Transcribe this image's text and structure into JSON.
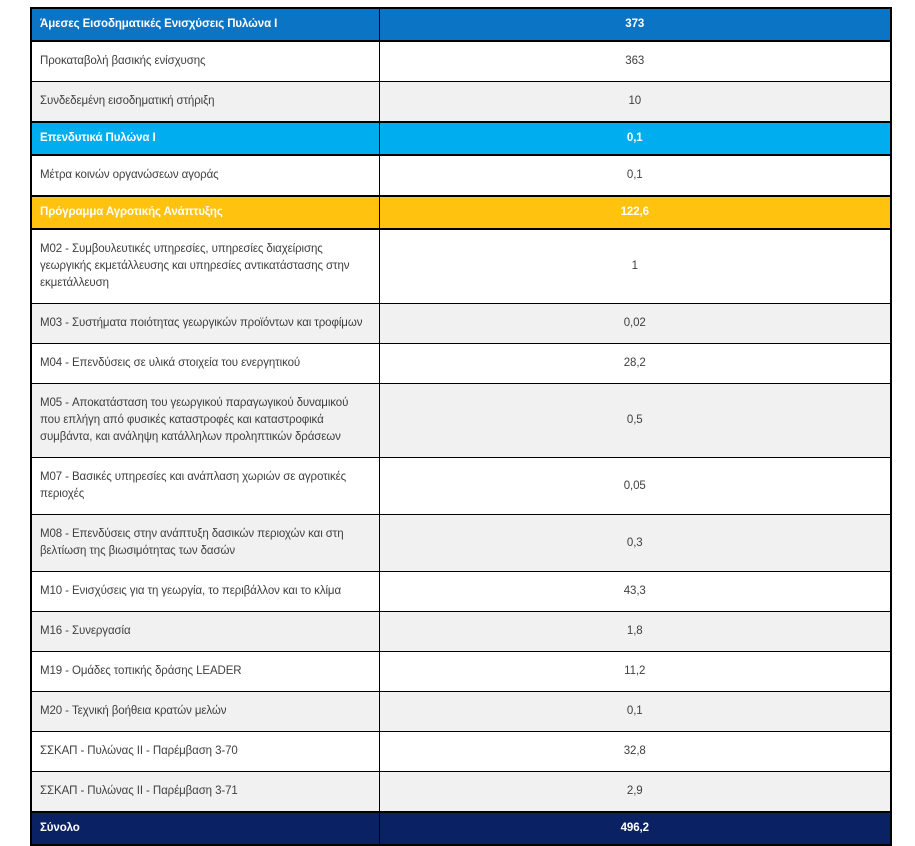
{
  "colors": {
    "header_blue": "#0b74c4",
    "header_cyan": "#00aeef",
    "header_orange": "#ffc20e",
    "total_navy": "#0a2263",
    "row_gray": "#f1f1f1",
    "row_white": "#ffffff",
    "border_black": "#000000",
    "text_dark": "#3f3f3f",
    "text_light": "#ffffff"
  },
  "chart_data": {
    "type": "table",
    "title": "",
    "columns": [
      "label",
      "value"
    ],
    "value_decimal_separator": ",",
    "rows": [
      {
        "row_style": "header-blue",
        "label": "Άμεσες Εισοδηματικές Ενισχύσεις Πυλώνα I",
        "value": "373"
      },
      {
        "row_style": "white",
        "label": "Προκαταβολή βασικής ενίσχυσης",
        "value": "363"
      },
      {
        "row_style": "gray",
        "label": "Συνδεδεμένη εισοδηματική στήριξη",
        "value": "10"
      },
      {
        "row_style": "header-cyan",
        "label": "Επενδυτικά Πυλώνα I",
        "value": "0,1"
      },
      {
        "row_style": "white",
        "label": "Μέτρα κοινών οργανώσεων αγοράς",
        "value": "0,1"
      },
      {
        "row_style": "header-orange",
        "label": "Πρόγραμμα Αγροτικής Ανάπτυξης",
        "value": "122,6"
      },
      {
        "row_style": "white",
        "label": "M02 - Συμβουλευτικές υπηρεσίες, υπηρεσίες διαχείρισης γεωργικής εκμετάλλευσης και υπηρεσίες αντικατάστασης στην εκμετάλλευση",
        "value": "1"
      },
      {
        "row_style": "gray",
        "label": "M03 - Συστήματα ποιότητας γεωργικών προϊόντων και τροφίμων",
        "value": "0,02"
      },
      {
        "row_style": "white",
        "label": "M04 - Επενδύσεις σε υλικά στοιχεία του ενεργητικού",
        "value": "28,2"
      },
      {
        "row_style": "gray",
        "label": "M05 - Αποκατάσταση του γεωργικού παραγωγικού δυναμικού που επλήγη από φυσικές καταστροφές και καταστροφικά συμβάντα, και ανάληψη κατάλληλων προληπτικών δράσεων",
        "value": "0,5"
      },
      {
        "row_style": "white",
        "label": "M07 - Βασικές υπηρεσίες και ανάπλαση χωριών σε αγροτικές περιοχές",
        "value": "0,05"
      },
      {
        "row_style": "gray",
        "label": "M08 - Επενδύσεις στην ανάπτυξη δασικών περιοχών και στη βελτίωση της βιωσιμότητας των δασών",
        "value": "0,3"
      },
      {
        "row_style": "white",
        "label": "M10 - Ενισχύσεις για τη γεωργία, το περιβάλλον και το κλίμα",
        "value": "43,3"
      },
      {
        "row_style": "gray",
        "label": "M16 - Συνεργασία",
        "value": "1,8"
      },
      {
        "row_style": "white",
        "label": "M19 - Ομάδες τοπικής δράσης LEADER",
        "value": "11,2"
      },
      {
        "row_style": "gray",
        "label": "M20 - Τεχνική βοήθεια κρατών μελών",
        "value": "0,1"
      },
      {
        "row_style": "white",
        "label": "ΣΣΚΑΠ - Πυλώνας II - Παρέμβαση 3-70",
        "value": "32,8"
      },
      {
        "row_style": "gray",
        "label": "ΣΣΚΑΠ - Πυλώνας II - Παρέμβαση 3-71",
        "value": "2,9"
      },
      {
        "row_style": "total",
        "label": "Σύνολο",
        "value": "496,2"
      }
    ]
  }
}
